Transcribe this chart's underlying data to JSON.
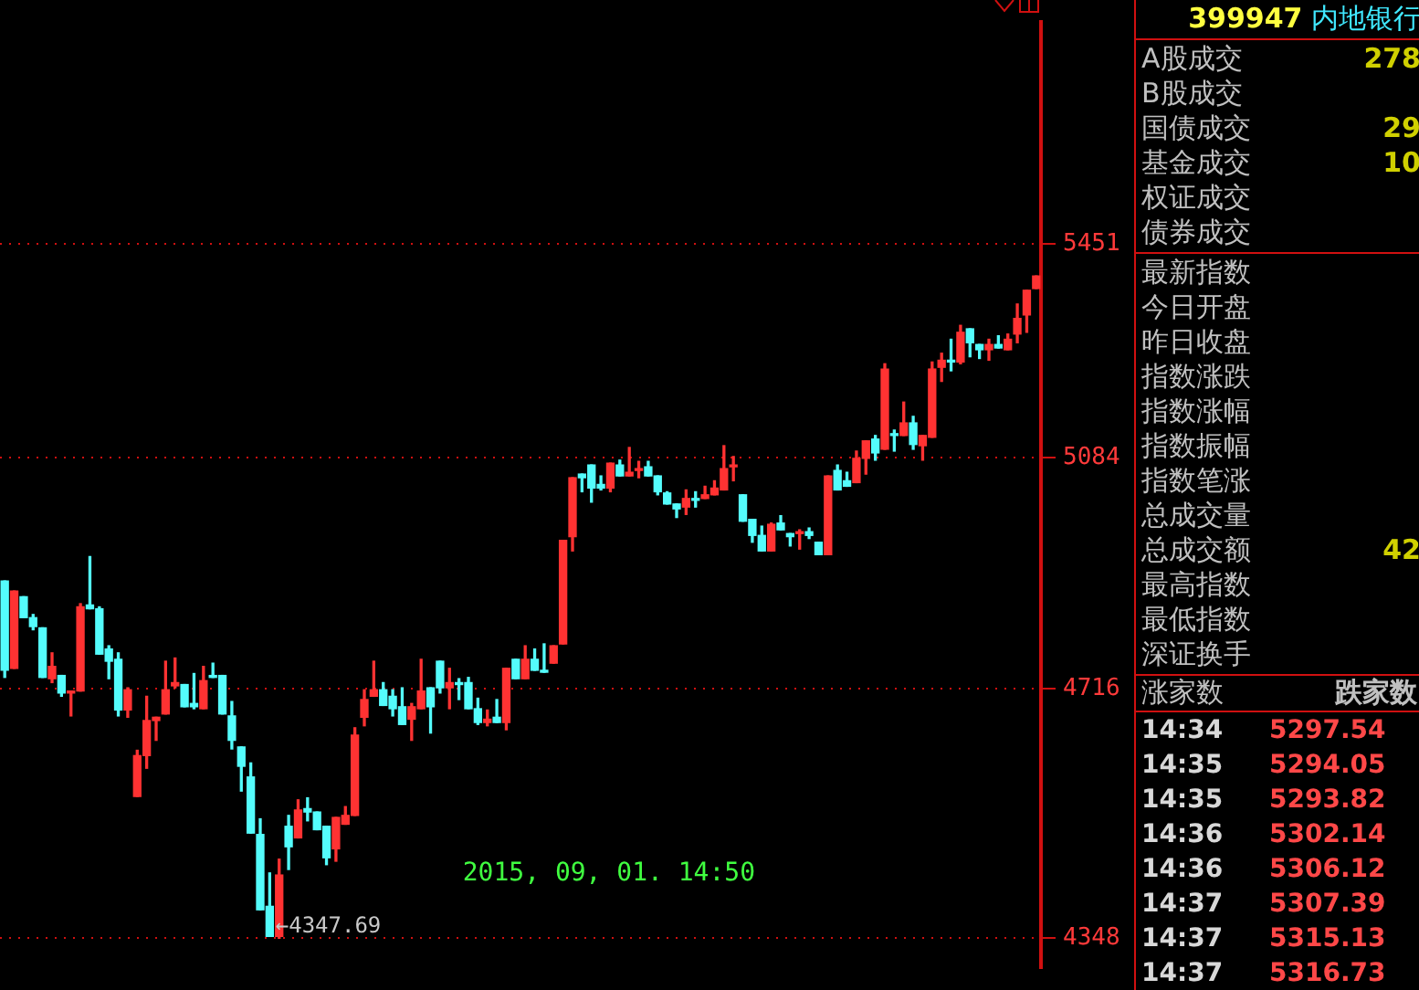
{
  "chart_data": {
    "type": "candlestick",
    "log": "y",
    "grid": "y",
    "ylim": [
      4305,
      5860
    ],
    "yticks": [
      4348,
      4716,
      5084,
      5451
    ],
    "categories": [
      null,
      null,
      null,
      null,
      null,
      null,
      null,
      null,
      null,
      null,
      null,
      null,
      null,
      null,
      null,
      null,
      null,
      null,
      null,
      null,
      null,
      null,
      null,
      null,
      null,
      null,
      null,
      null,
      null,
      null,
      null,
      null,
      null,
      null,
      null,
      null,
      null,
      null,
      null,
      null,
      null,
      null,
      null,
      null,
      null,
      null,
      null,
      null,
      null,
      null,
      null,
      null,
      null,
      null,
      null,
      null,
      null,
      null,
      null,
      null,
      null,
      null,
      null,
      null,
      null,
      null,
      null,
      null,
      null,
      null,
      null,
      null,
      null,
      null,
      null,
      null,
      null,
      null,
      null,
      null,
      null,
      null,
      null,
      null,
      null,
      null,
      null,
      null,
      null,
      null,
      null,
      null,
      null,
      null,
      null,
      null,
      null,
      null,
      null,
      null,
      null,
      null,
      null,
      null,
      null,
      null,
      null,
      null,
      null,
      null
    ],
    "ohlc": [
      [
        4884,
        4884,
        4733,
        4744
      ],
      [
        4747,
        4868,
        4747,
        4868
      ],
      [
        4859,
        4859,
        4826,
        4826
      ],
      [
        4826,
        4831,
        4807,
        4812
      ],
      [
        4810,
        4810,
        4733,
        4733
      ],
      [
        4731,
        4771,
        4725,
        4750
      ],
      [
        4736,
        4736,
        4704,
        4709
      ],
      [
        4709,
        4712,
        4674,
        4712
      ],
      [
        4712,
        4848,
        4712,
        4843
      ],
      [
        4846,
        4923,
        4840,
        4840
      ],
      [
        4840,
        4843,
        4769,
        4769
      ],
      [
        4777,
        4782,
        4731,
        4758
      ],
      [
        4761,
        4771,
        4674,
        4683
      ],
      [
        4683,
        4717,
        4672,
        4714
      ],
      [
        4553,
        4622,
        4553,
        4614
      ],
      [
        4614,
        4704,
        4595,
        4667
      ],
      [
        4667,
        4672,
        4637,
        4672
      ],
      [
        4677,
        4758,
        4677,
        4714
      ],
      [
        4720,
        4763,
        4717,
        4725
      ],
      [
        4722,
        4722,
        4688,
        4688
      ],
      [
        4693,
        4739,
        4685,
        4688
      ],
      [
        4685,
        4750,
        4685,
        4728
      ],
      [
        4736,
        4755,
        4733,
        4733
      ],
      [
        4736,
        4736,
        4677,
        4677
      ],
      [
        4674,
        4696,
        4624,
        4637
      ],
      [
        4627,
        4627,
        4561,
        4598
      ],
      [
        4582,
        4603,
        4499,
        4499
      ],
      [
        4497,
        4520,
        4388,
        4388
      ],
      [
        4393,
        4441,
        4350,
        4350
      ],
      [
        4350,
        4461,
        4347.69,
        4438
      ],
      [
        4509,
        4525,
        4446,
        4479
      ],
      [
        4492,
        4548,
        4492,
        4533
      ],
      [
        4535,
        4551,
        4517,
        4530
      ],
      [
        4530,
        4530,
        4504,
        4504
      ],
      [
        4509,
        4509,
        4453,
        4463
      ],
      [
        4476,
        4522,
        4458,
        4522
      ],
      [
        4512,
        4538,
        4512,
        4525
      ],
      [
        4525,
        4656,
        4525,
        4645
      ],
      [
        4672,
        4714,
        4659,
        4699
      ],
      [
        4704,
        4758,
        4704,
        4714
      ],
      [
        4714,
        4725,
        4690,
        4690
      ],
      [
        4704,
        4714,
        4674,
        4685
      ],
      [
        4688,
        4717,
        4661,
        4661
      ],
      [
        4669,
        4693,
        4637,
        4688
      ],
      [
        4685,
        4761,
        4685,
        4712
      ],
      [
        4717,
        4717,
        4648,
        4688
      ],
      [
        4758,
        4758,
        4709,
        4717
      ],
      [
        4717,
        4747,
        4685,
        4725
      ],
      [
        4725,
        4731,
        4699,
        4722
      ],
      [
        4725,
        4733,
        4685,
        4685
      ],
      [
        4685,
        4701,
        4661,
        4664
      ],
      [
        4664,
        4683,
        4659,
        4669
      ],
      [
        4672,
        4699,
        4664,
        4664
      ],
      [
        4664,
        4747,
        4653,
        4747
      ],
      [
        4761,
        4761,
        4731,
        4731
      ],
      [
        4731,
        4782,
        4731,
        4761
      ],
      [
        4761,
        4777,
        4744,
        4744
      ],
      [
        4744,
        4785,
        4741,
        4741
      ],
      [
        4755,
        4782,
        4755,
        4782
      ],
      [
        4785,
        4949,
        4785,
        4949
      ],
      [
        4955,
        5051,
        4932,
        5051
      ],
      [
        5057,
        5057,
        5028,
        5051
      ],
      [
        5072,
        5072,
        5011,
        5034
      ],
      [
        5040,
        5054,
        5031,
        5034
      ],
      [
        5034,
        5075,
        5028,
        5075
      ],
      [
        5072,
        5080,
        5054,
        5054
      ],
      [
        5054,
        5101,
        5054,
        5060
      ],
      [
        5063,
        5078,
        5051,
        5066
      ],
      [
        5069,
        5078,
        5054,
        5054
      ],
      [
        5054,
        5054,
        5023,
        5028
      ],
      [
        5026,
        5028,
        5008,
        5008
      ],
      [
        5008,
        5008,
        4986,
        5000
      ],
      [
        5003,
        5031,
        4991,
        5017
      ],
      [
        5017,
        5028,
        5003,
        5014
      ],
      [
        5017,
        5037,
        5017,
        5023
      ],
      [
        5023,
        5046,
        5023,
        5034
      ],
      [
        5031,
        5104,
        5031,
        5066
      ],
      [
        5069,
        5086,
        5046,
        5072
      ],
      [
        5023,
        5023,
        4980,
        4980
      ],
      [
        4983,
        4983,
        4946,
        4957
      ],
      [
        4957,
        4972,
        4932,
        4932
      ],
      [
        4932,
        4977,
        4932,
        4975
      ],
      [
        4977,
        4989,
        4966,
        4966
      ],
      [
        4960,
        4960,
        4940,
        4955
      ],
      [
        4960,
        4966,
        4935,
        4963
      ],
      [
        4963,
        4969,
        4952,
        4957
      ],
      [
        4946,
        4946,
        4926,
        4926
      ],
      [
        4926,
        5054,
        4926,
        5054
      ],
      [
        5063,
        5072,
        5031,
        5031
      ],
      [
        5046,
        5060,
        5037,
        5037
      ],
      [
        5043,
        5095,
        5043,
        5083
      ],
      [
        5083,
        5112,
        5057,
        5112
      ],
      [
        5115,
        5121,
        5080,
        5092
      ],
      [
        5098,
        5242,
        5098,
        5233
      ],
      [
        5124,
        5130,
        5095,
        5121
      ],
      [
        5121,
        5177,
        5121,
        5142
      ],
      [
        5142,
        5153,
        5098,
        5106
      ],
      [
        5104,
        5121,
        5080,
        5121
      ],
      [
        5118,
        5245,
        5118,
        5233
      ],
      [
        5236,
        5260,
        5212,
        5248
      ],
      [
        5248,
        5284,
        5230,
        5245
      ],
      [
        5245,
        5308,
        5242,
        5296
      ],
      [
        5302,
        5302,
        5254,
        5278
      ],
      [
        5275,
        5275,
        5251,
        5266
      ],
      [
        5266,
        5284,
        5248,
        5275
      ],
      [
        5275,
        5290,
        5269,
        5269
      ],
      [
        5266,
        5293,
        5266,
        5284
      ],
      [
        5293,
        5345,
        5278,
        5320
      ],
      [
        5326,
        5369,
        5296,
        5369
      ],
      [
        5372,
        5394,
        5372,
        5394
      ]
    ],
    "annotations": [
      "←4347.69",
      "2015, 09, 01. 14:50",
      "399947\t内地银行",
      "A股成交\t278",
      "B股成交\t",
      "国债成交\t29",
      "基金成交\t10",
      "权证成交\t",
      "债券成交\t",
      "最新指数\t",
      "今日开盘\t",
      "昨日收盘\t",
      "指数涨跌\t",
      "指数涨幅\t",
      "指数振幅\t",
      "指数笔涨\t",
      "总成交量\t",
      "总成交额\t42",
      "最高指数\t",
      "最低指数\t",
      "深证换手\t",
      "涨家数\t跌家数",
      "14:34\t5297.54",
      "14:35\t5294.05",
      "14:35\t5293.82",
      "14:36\t5302.14",
      "14:36\t5306.12",
      "14:37\t5307.39",
      "14:37\t5315.13",
      "14:37\t5316.73"
    ]
  }
}
